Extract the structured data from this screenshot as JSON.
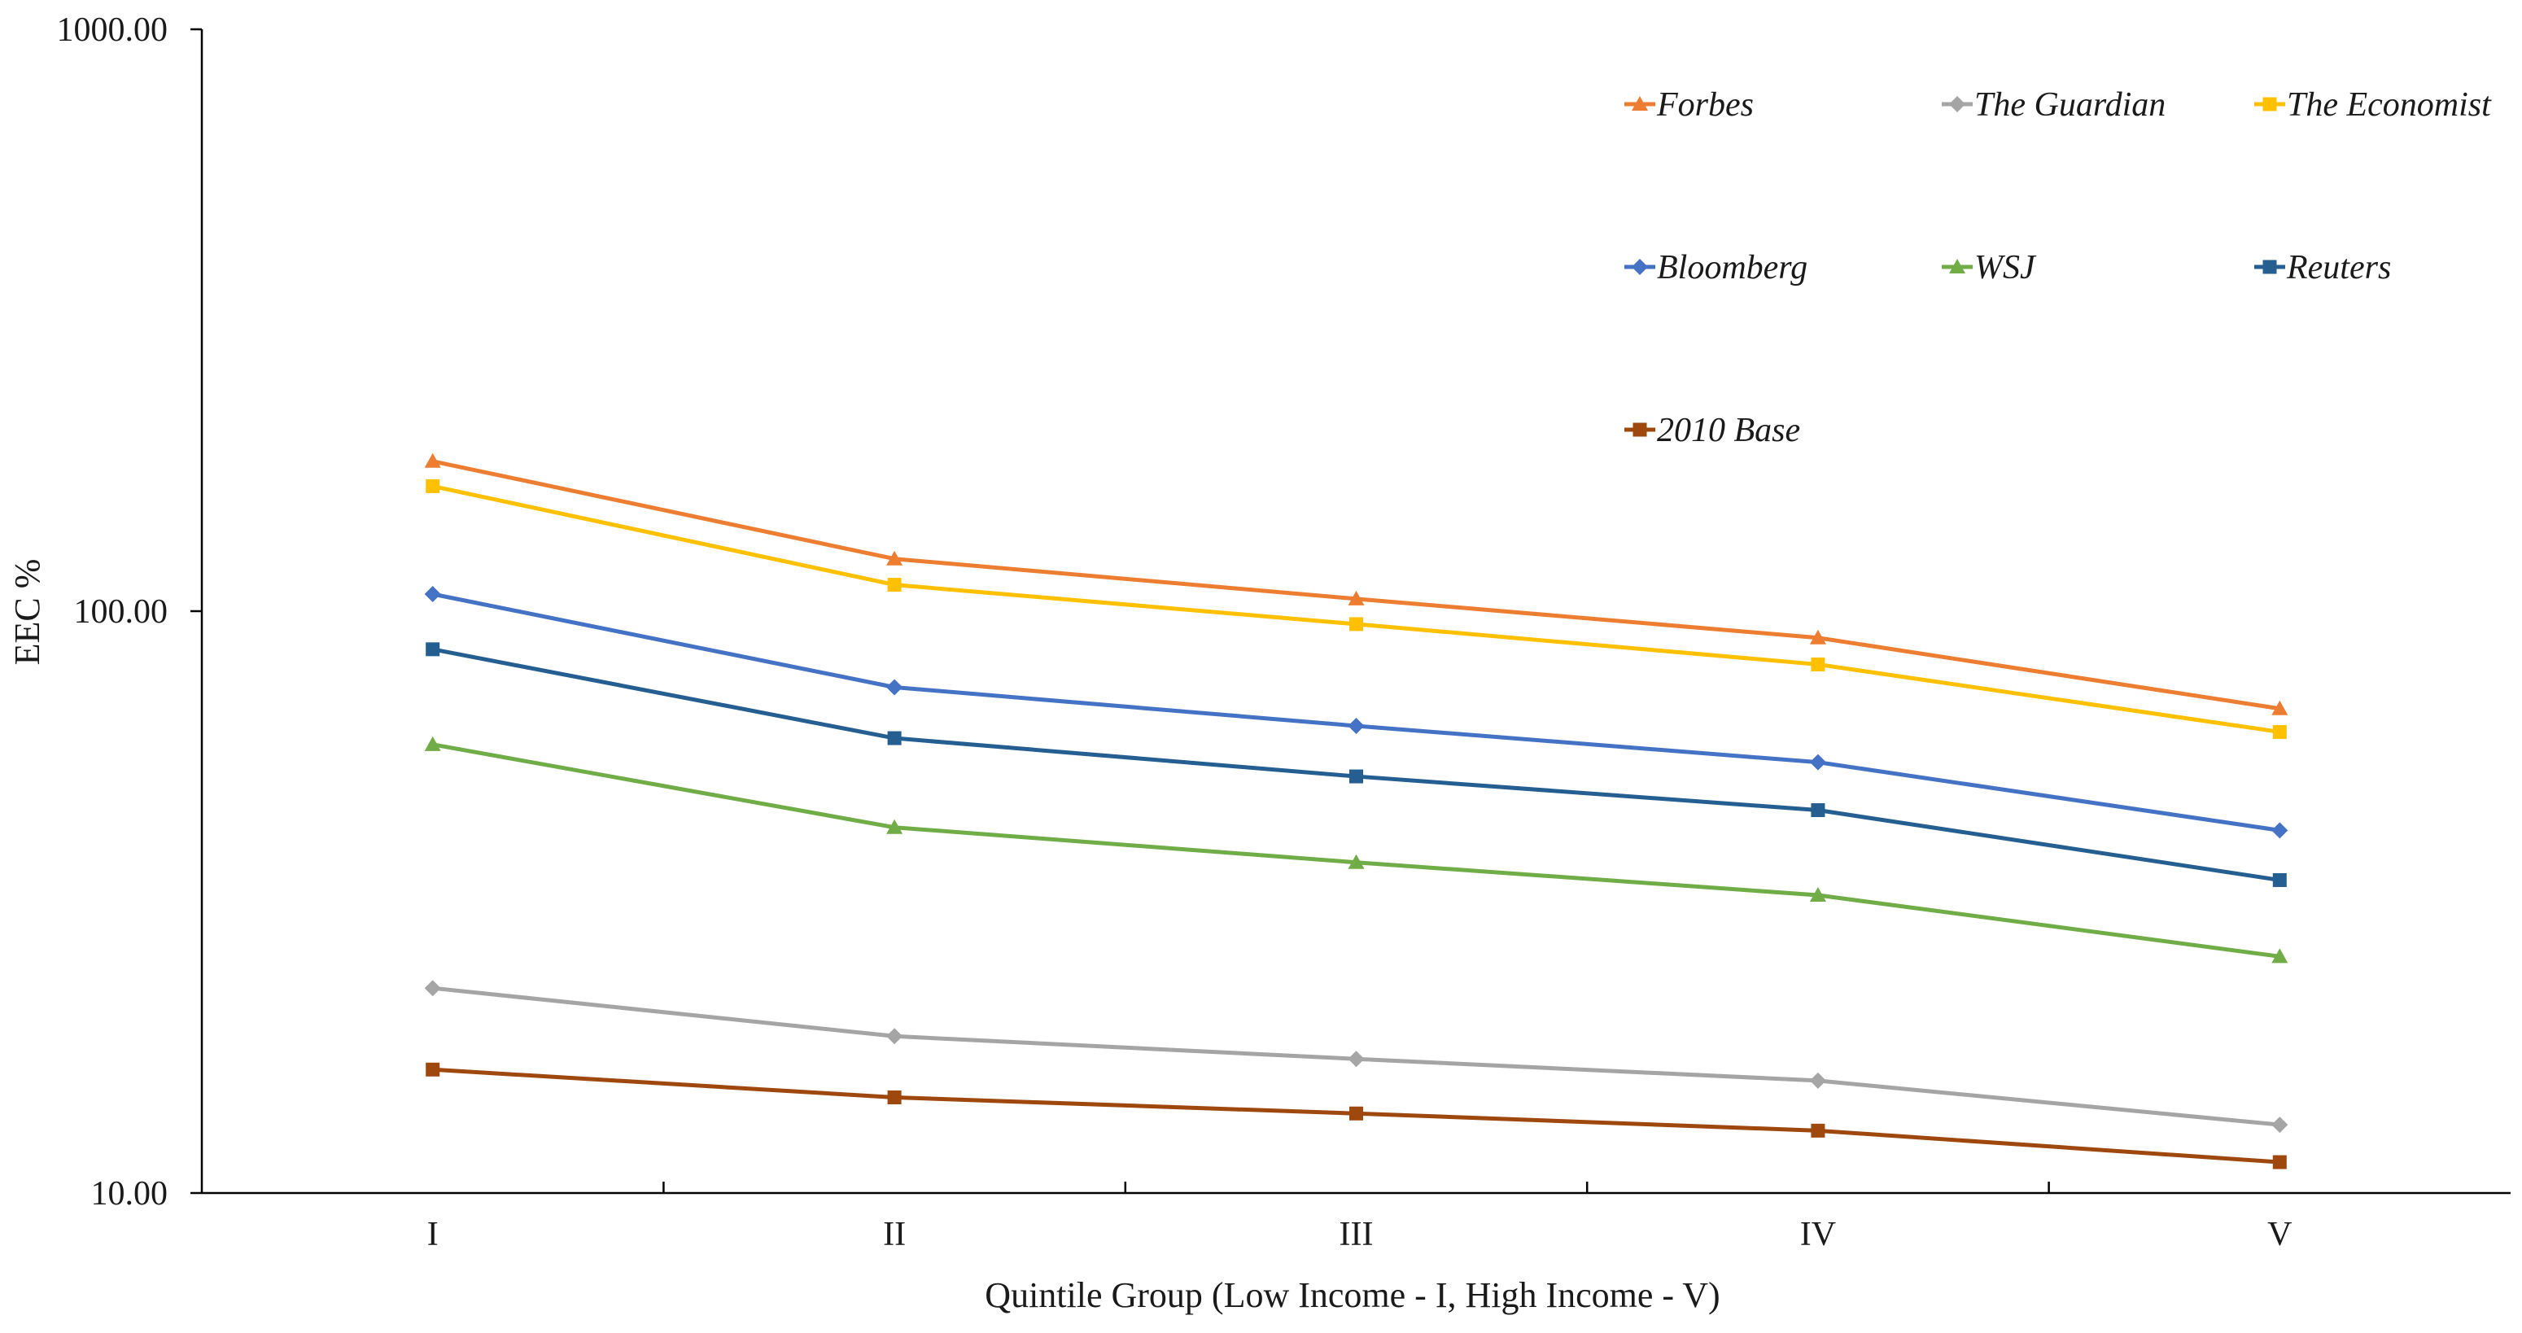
{
  "chart_data": {
    "type": "line",
    "title": "",
    "xlabel": "Quintile Group (Low Income - I, High Income - V)",
    "ylabel": "EEC %",
    "yscale": "log",
    "ylim": [
      10,
      1000
    ],
    "y_ticks": [
      10,
      100,
      1000
    ],
    "y_tick_labels": [
      "10.00",
      "100.00",
      "1000.00"
    ],
    "categories": [
      "I",
      "II",
      "III",
      "IV",
      "V"
    ],
    "legend_position": "top-right",
    "series": [
      {
        "name": "Forbes",
        "marker": "triangle",
        "color": "#ED7D31",
        "values": [
          181,
          123,
          105,
          90,
          68
        ]
      },
      {
        "name": "The Guardian",
        "marker": "diamond",
        "color": "#A5A5A5",
        "values": [
          22.5,
          18.6,
          17.0,
          15.6,
          13.1
        ]
      },
      {
        "name": "The Economist",
        "marker": "square",
        "color": "#FFC000",
        "values": [
          164,
          111,
          95,
          81,
          62
        ]
      },
      {
        "name": "Bloomberg",
        "marker": "diamond",
        "color": "#4472C4",
        "values": [
          107,
          74,
          63.5,
          55,
          42
        ]
      },
      {
        "name": "WSJ",
        "marker": "triangle",
        "color": "#70AD47",
        "values": [
          59,
          42.5,
          37,
          32.5,
          25.5
        ]
      },
      {
        "name": "Reuters",
        "marker": "square",
        "color": "#255E91",
        "values": [
          86,
          60.5,
          52,
          45.5,
          34.5
        ]
      },
      {
        "name": "2010 Base",
        "marker": "square",
        "color": "#9E480E",
        "values": [
          16.3,
          14.6,
          13.7,
          12.8,
          11.3
        ]
      }
    ]
  }
}
